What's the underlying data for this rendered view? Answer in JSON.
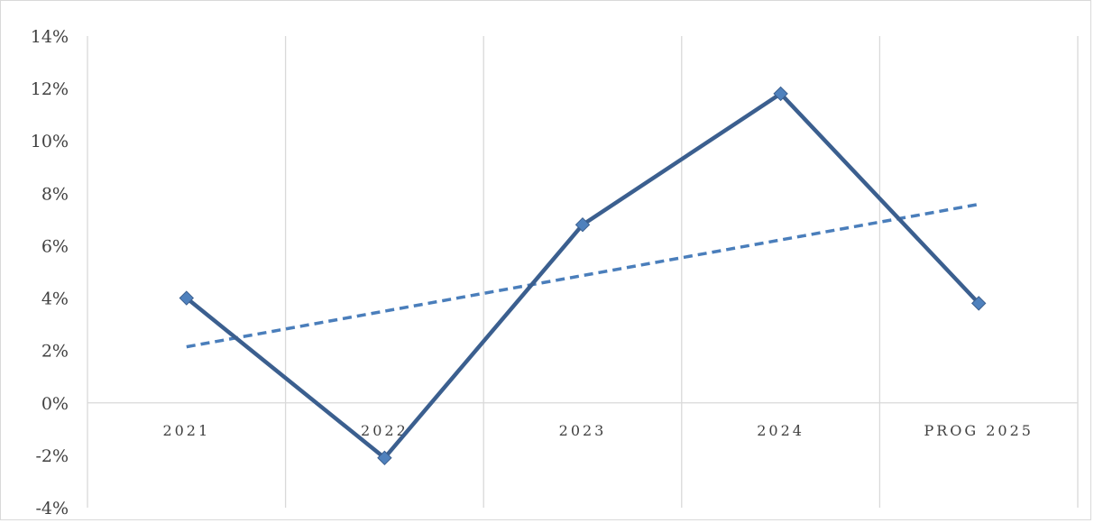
{
  "chart_data": {
    "type": "line",
    "title": "",
    "xlabel": "",
    "ylabel": "",
    "categories": [
      "2021",
      "2022",
      "2023",
      "2024",
      "PROG 2025"
    ],
    "series": [
      {
        "values": [
          4.0,
          -2.1,
          6.8,
          11.8,
          3.8
        ],
        "color": "#3b5f8f",
        "marker": "diamond",
        "marker_color": "#4f81bd"
      }
    ],
    "trendline": {
      "type": "linear",
      "style": "dashed",
      "color": "#4a7ebb",
      "values": [
        2.14,
        3.5,
        4.86,
        6.22,
        7.58
      ]
    },
    "ylim": [
      -4,
      14
    ],
    "yticks": [
      -4,
      -2,
      0,
      2,
      4,
      6,
      8,
      10,
      12,
      14
    ],
    "ytick_labels": [
      "-4%",
      "-2%",
      "0%",
      "2%",
      "4%",
      "6%",
      "8%",
      "10%",
      "12%",
      "14%"
    ],
    "grid": {
      "vertical": true,
      "horizontal": false,
      "color": "#d9d9d9"
    },
    "legend": "none"
  }
}
